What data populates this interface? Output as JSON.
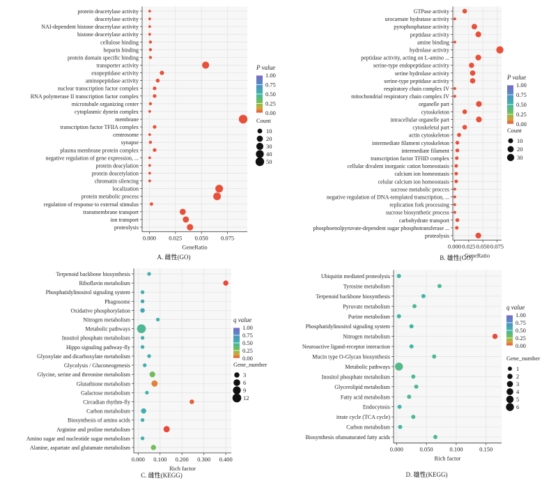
{
  "chart_data": [
    {
      "panel": "A",
      "type": "scatter",
      "caption": "A. 雌性(GO)",
      "xlabel": "GeneRatio",
      "xlim": [
        -0.007,
        0.094
      ],
      "xticks": [
        0.0,
        0.025,
        0.05,
        0.075
      ],
      "xtick_labels": [
        "0.000",
        "0.025",
        "0.050",
        "0.075"
      ],
      "color_title": "P value",
      "color_ticks": [
        "1.00",
        "0.75",
        "0.50",
        "0.25",
        "0.00"
      ],
      "size_title": "Count",
      "size_ticks": [
        {
          "label": "10",
          "value": 10
        },
        {
          "label": "20",
          "value": 20
        },
        {
          "label": "30",
          "value": 30
        },
        {
          "label": "40",
          "value": 40
        },
        {
          "label": "50",
          "value": 50
        }
      ],
      "size_max": 50,
      "categories": [
        "protein deacetylase activity",
        "deacetylase activity",
        "NAI-dependent histone deacetylase activity",
        "histone deacetylase activity",
        "cellulose binding",
        "heparin binding",
        "protein domain specific binding",
        "transporter activity",
        "exopeptidase activity",
        "aminopeptidase activity",
        "nuclear transcription factor complex",
        "RNA polymerase II transcription factor complex",
        "microtubule organizing center",
        "cytoplasmic dynein complex",
        "membrane",
        "transcription factor TFIIA complex",
        "centrosome",
        "synapse",
        "plasma membrane protein complex",
        "negative regulation of gene expression, ...",
        "protein deacylation",
        "protein deacetylation",
        "chromatin silencing",
        "localization",
        "protein metabolic process",
        "regulation of response to external stimulus",
        "transmembrane transport",
        "ion transport",
        "proteolysis"
      ],
      "points": [
        {
          "x": 0.0003,
          "count": 1,
          "p": 0.01
        },
        {
          "x": 0.0003,
          "count": 1,
          "p": 0.01
        },
        {
          "x": 0.0003,
          "count": 1,
          "p": 0.01
        },
        {
          "x": 0.0003,
          "count": 1,
          "p": 0.01
        },
        {
          "x": 0.001,
          "count": 2,
          "p": 0.01
        },
        {
          "x": 0.001,
          "count": 2,
          "p": 0.01
        },
        {
          "x": 0.001,
          "count": 2,
          "p": 0.01
        },
        {
          "x": 0.054,
          "count": 30,
          "p": 0.01
        },
        {
          "x": 0.012,
          "count": 7,
          "p": 0.01
        },
        {
          "x": 0.008,
          "count": 5,
          "p": 0.01
        },
        {
          "x": 0.005,
          "count": 4,
          "p": 0.01
        },
        {
          "x": 0.005,
          "count": 4,
          "p": 0.01
        },
        {
          "x": 0.001,
          "count": 2,
          "p": 0.01
        },
        {
          "x": 0.0003,
          "count": 1,
          "p": 0.01
        },
        {
          "x": 0.09,
          "count": 50,
          "p": 0.01
        },
        {
          "x": 0.005,
          "count": 4,
          "p": 0.01
        },
        {
          "x": 0.0003,
          "count": 1,
          "p": 0.01
        },
        {
          "x": 0.001,
          "count": 2,
          "p": 0.01
        },
        {
          "x": 0.005,
          "count": 4,
          "p": 0.01
        },
        {
          "x": 0.0003,
          "count": 1,
          "p": 0.01
        },
        {
          "x": 0.0003,
          "count": 1,
          "p": 0.01
        },
        {
          "x": 0.0003,
          "count": 1,
          "p": 0.01
        },
        {
          "x": 0.0003,
          "count": 1,
          "p": 0.01
        },
        {
          "x": 0.067,
          "count": 38,
          "p": 0.01
        },
        {
          "x": 0.065,
          "count": 37,
          "p": 0.01
        },
        {
          "x": 0.002,
          "count": 3,
          "p": 0.01
        },
        {
          "x": 0.032,
          "count": 20,
          "p": 0.01
        },
        {
          "x": 0.035,
          "count": 21,
          "p": 0.01
        },
        {
          "x": 0.039,
          "count": 23,
          "p": 0.01
        }
      ]
    },
    {
      "panel": "B",
      "type": "scatter",
      "caption": "B. 雄性(GO)",
      "xlabel": "GeneRatio",
      "xlim": [
        -0.003,
        0.083
      ],
      "xticks": [
        0.0,
        0.025,
        0.05,
        0.075
      ],
      "xtick_labels": [
        "0.000",
        "0.025",
        "0.050",
        "0.075"
      ],
      "color_title": "P value",
      "color_ticks": [
        "1.00",
        "0.75",
        "0.50",
        "0.25",
        "0.00"
      ],
      "size_title": "Count",
      "size_ticks": [
        {
          "label": "10",
          "value": 10
        },
        {
          "label": "20",
          "value": 20
        },
        {
          "label": "30",
          "value": 30
        }
      ],
      "size_max": 30,
      "categories": [
        "GTPase activity",
        "urocarnate hydratase activity",
        "pyrophosphatase activity",
        "peptidase activity",
        "amine binding",
        "hydrolase activity",
        "peptidase activity, acting on L-amino ...",
        "serine-type endopeptidase activity",
        "serine hydrolase activity",
        "serine-type peptidase activity",
        "respiratory chain complex IV",
        "mitochondrial respiratory chain complex IV",
        "organelle part",
        "cytoskeleton",
        "intracellular organelle part",
        "cytoskeletal part",
        "actin cytoskeleton",
        "intermediate filament cytoskeleton",
        "intermediate filament",
        "transcription factor TFIID complex",
        "cellular divalent inorganic cation homeostasis",
        "calcium ion homeostasis",
        "celular calcium ion homeostasis",
        "sucrose metabolic procces",
        "negative regulation of DNA-templated transcription, ...",
        "replication fork processing",
        "sucrose biosynthetic process",
        "carbohydrate transport",
        "phosphoenolpyruvate-dependent sugar phosphotransferase ...",
        "proteolysis"
      ],
      "points": [
        {
          "x": 0.018,
          "count": 8,
          "p": 0.01
        },
        {
          "x": 0.0005,
          "count": 1,
          "p": 0.01
        },
        {
          "x": 0.035,
          "count": 14,
          "p": 0.01
        },
        {
          "x": 0.042,
          "count": 16,
          "p": 0.01
        },
        {
          "x": 0.0005,
          "count": 1,
          "p": 0.01
        },
        {
          "x": 0.08,
          "count": 30,
          "p": 0.01
        },
        {
          "x": 0.042,
          "count": 16,
          "p": 0.01
        },
        {
          "x": 0.03,
          "count": 12,
          "p": 0.01
        },
        {
          "x": 0.032,
          "count": 13,
          "p": 0.01
        },
        {
          "x": 0.032,
          "count": 13,
          "p": 0.01
        },
        {
          "x": 0.0005,
          "count": 1,
          "p": 0.01
        },
        {
          "x": 0.0005,
          "count": 1,
          "p": 0.01
        },
        {
          "x": 0.043,
          "count": 16,
          "p": 0.01
        },
        {
          "x": 0.018,
          "count": 8,
          "p": 0.01
        },
        {
          "x": 0.043,
          "count": 16,
          "p": 0.01
        },
        {
          "x": 0.018,
          "count": 8,
          "p": 0.01
        },
        {
          "x": 0.008,
          "count": 5,
          "p": 0.01
        },
        {
          "x": 0.005,
          "count": 4,
          "p": 0.01
        },
        {
          "x": 0.005,
          "count": 4,
          "p": 0.01
        },
        {
          "x": 0.004,
          "count": 3,
          "p": 0.01
        },
        {
          "x": 0.003,
          "count": 3,
          "p": 0.01
        },
        {
          "x": 0.003,
          "count": 3,
          "p": 0.01
        },
        {
          "x": 0.003,
          "count": 3,
          "p": 0.01
        },
        {
          "x": 0.0005,
          "count": 1,
          "p": 0.01
        },
        {
          "x": 0.0005,
          "count": 1,
          "p": 0.01
        },
        {
          "x": 0.0005,
          "count": 1,
          "p": 0.01
        },
        {
          "x": 0.0005,
          "count": 1,
          "p": 0.01
        },
        {
          "x": 0.005,
          "count": 4,
          "p": 0.01
        },
        {
          "x": 0.004,
          "count": 3,
          "p": 0.01
        },
        {
          "x": 0.042,
          "count": 16,
          "p": 0.01
        }
      ]
    },
    {
      "panel": "C",
      "type": "scatter",
      "caption": "C. 雌性(KEGG)",
      "xlabel": "Rich factor",
      "xlim": [
        -0.02,
        0.425
      ],
      "xticks": [
        0.0,
        0.1,
        0.2,
        0.3,
        0.4
      ],
      "xtick_labels": [
        "0.000",
        "0.100",
        "0.200",
        "0.300",
        "0.400"
      ],
      "color_title": "q value",
      "color_ticks": [
        "1.00",
        "0.75",
        "0.50",
        "0.25",
        "0.00"
      ],
      "size_title": "Gene_number",
      "size_ticks": [
        {
          "label": "3",
          "value": 3
        },
        {
          "label": "6",
          "value": 6
        },
        {
          "label": "9",
          "value": 9
        },
        {
          "label": "12",
          "value": 12
        }
      ],
      "size_max": 12,
      "categories": [
        "Terpenoid backbone biosynthesis",
        "Riboflavin metabolism",
        "Phosphatidylinositol signaling system",
        "Phagosome",
        "Oxidative phosphorylation",
        "Nitrogen metabolism",
        "Metabolic pathways",
        "Inositol phosphate metabolism",
        "Hippo signaling pathway-fly",
        "Glyoxylate and dicarboxylate metabolism",
        "Glycolysis / Gluconeogenesis",
        "Glycine, serine and threonine metabolism",
        "Glutathione metabolism",
        "Galactose metabolism",
        "Circadian rhythm-fly",
        "Carbon metabolism",
        "Biosynthesis of amino acids",
        "Arginine and proline metabolism",
        "Amino sugar and nucleotide sugar metabolism",
        "Alanine, aspartate and glutamate metabolism"
      ],
      "points": [
        {
          "x": 0.05,
          "count": 1,
          "q": 0.55
        },
        {
          "x": 0.4,
          "count": 3,
          "q": 0.0
        },
        {
          "x": 0.02,
          "count": 1,
          "q": 0.55
        },
        {
          "x": 0.02,
          "count": 1,
          "q": 0.6
        },
        {
          "x": 0.02,
          "count": 2,
          "q": 0.6
        },
        {
          "x": 0.09,
          "count": 1,
          "q": 0.5
        },
        {
          "x": 0.015,
          "count": 12,
          "q": 0.45
        },
        {
          "x": 0.02,
          "count": 1,
          "q": 0.55
        },
        {
          "x": 0.02,
          "count": 1,
          "q": 0.55
        },
        {
          "x": 0.05,
          "count": 1,
          "q": 0.55
        },
        {
          "x": 0.03,
          "count": 1,
          "q": 0.55
        },
        {
          "x": 0.065,
          "count": 4,
          "q": 0.3
        },
        {
          "x": 0.075,
          "count": 5,
          "q": 0.08
        },
        {
          "x": 0.04,
          "count": 1,
          "q": 0.5
        },
        {
          "x": 0.245,
          "count": 2,
          "q": 0.03
        },
        {
          "x": 0.025,
          "count": 3,
          "q": 0.55
        },
        {
          "x": 0.02,
          "count": 1,
          "q": 0.55
        },
        {
          "x": 0.13,
          "count": 5,
          "q": 0.0
        },
        {
          "x": 0.02,
          "count": 1,
          "q": 0.55
        },
        {
          "x": 0.07,
          "count": 3,
          "q": 0.3
        }
      ]
    },
    {
      "panel": "D",
      "type": "scatter",
      "caption": "D. 雄性(KEGG)",
      "xlabel": "Rich factor",
      "xlim": [
        -0.005,
        0.176
      ],
      "xticks": [
        0.0,
        0.05,
        0.1,
        0.15
      ],
      "xtick_labels": [
        "0.000",
        "0.050",
        "0.100",
        "0.150"
      ],
      "color_title": "q value",
      "color_ticks": [
        "1.00",
        "0.75",
        "0.50",
        "0.25",
        "0.00"
      ],
      "size_title": "Gene_number",
      "size_ticks": [
        {
          "label": "1",
          "value": 1
        },
        {
          "label": "2",
          "value": 2
        },
        {
          "label": "3",
          "value": 3
        },
        {
          "label": "4",
          "value": 4
        },
        {
          "label": "5",
          "value": 5
        },
        {
          "label": "6",
          "value": 6
        }
      ],
      "size_max": 6,
      "categories": [
        "Ubiquitin mediated proteolysis",
        "Tyrosine metabolism",
        "Terpenoid backbone biosynthesis",
        "Pyruvate metabolism",
        "Purine metabolism",
        "Phosphatidylinositol signaling system",
        "Nitrogen metabolism",
        "Neuroactive ligand-receptor interaction",
        "Mucin type O-Glycan biosynthesis",
        "Metabolic pathways",
        "Inositol phosphate metabolism",
        "Glycerolipid metabolism",
        "Fatty acid metabolism",
        "Endocytosis",
        "itrate cycle (TCA cycle)",
        "Carbon metabolism",
        "Biosynthesis ofunsaturated fatty acids"
      ],
      "points": [
        {
          "x": 0.004,
          "count": 1,
          "q": 0.5
        },
        {
          "x": 0.072,
          "count": 1,
          "q": 0.45
        },
        {
          "x": 0.045,
          "count": 1,
          "q": 0.5
        },
        {
          "x": 0.03,
          "count": 1,
          "q": 0.45
        },
        {
          "x": 0.004,
          "count": 1,
          "q": 0.5
        },
        {
          "x": 0.025,
          "count": 1,
          "q": 0.5
        },
        {
          "x": 0.165,
          "count": 2,
          "q": 0.0
        },
        {
          "x": 0.025,
          "count": 1,
          "q": 0.5
        },
        {
          "x": 0.063,
          "count": 1,
          "q": 0.45
        },
        {
          "x": 0.004,
          "count": 6,
          "q": 0.42
        },
        {
          "x": 0.028,
          "count": 1,
          "q": 0.45
        },
        {
          "x": 0.033,
          "count": 1,
          "q": 0.45
        },
        {
          "x": 0.021,
          "count": 1,
          "q": 0.45
        },
        {
          "x": 0.005,
          "count": 1,
          "q": 0.5
        },
        {
          "x": 0.028,
          "count": 1,
          "q": 0.45
        },
        {
          "x": 0.006,
          "count": 1,
          "q": 0.5
        },
        {
          "x": 0.065,
          "count": 1,
          "q": 0.45
        }
      ]
    }
  ]
}
